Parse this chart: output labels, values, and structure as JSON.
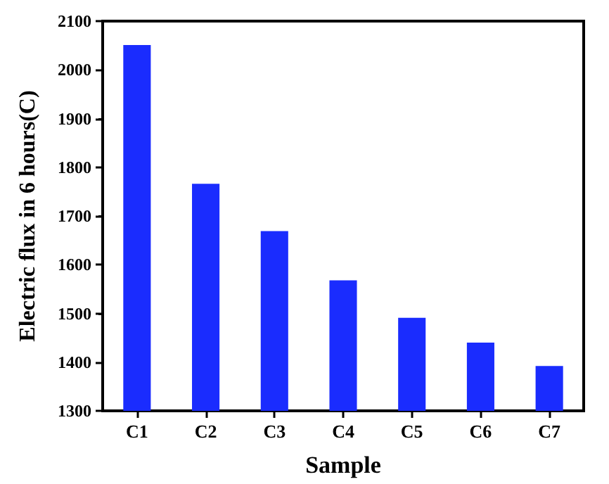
{
  "chart_data": {
    "type": "bar",
    "xlabel": "Sample",
    "ylabel": "Electric flux in 6 hours(C)",
    "categories": [
      "C1",
      "C2",
      "C3",
      "C4",
      "C5",
      "C6",
      "C7"
    ],
    "values": [
      2051,
      1766,
      1669,
      1568,
      1491,
      1440,
      1392
    ],
    "color": "#1a2cfe",
    "ylim": [
      1300,
      2100
    ],
    "yticks": [
      1300,
      1400,
      1500,
      1600,
      1700,
      1800,
      1900,
      2000,
      2100
    ],
    "grid": false
  }
}
